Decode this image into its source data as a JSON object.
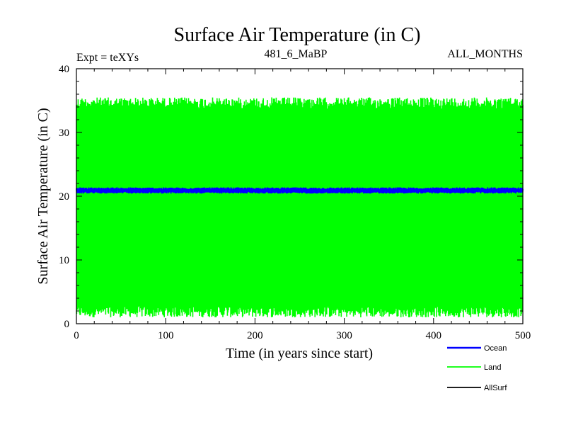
{
  "chart_data": {
    "type": "line",
    "title": "Surface Air Temperature (in C)",
    "subtitle_left": "Expt = teXYs",
    "subtitle_center": "481_6_MaBP",
    "subtitle_right": "ALL_MONTHS",
    "xlabel": "Time (in years since start)",
    "ylabel": "Surface Air Temperature (in C)",
    "xlim": [
      0,
      500
    ],
    "ylim": [
      0,
      40
    ],
    "x_ticks": [
      0,
      100,
      200,
      300,
      400,
      500
    ],
    "y_ticks": [
      0,
      10,
      20,
      30,
      40
    ],
    "grid": false,
    "legend_position": "bottom-right, outside plot",
    "series": [
      {
        "name": "Ocean",
        "color": "#0000ff",
        "x_range": [
          0,
          500
        ],
        "approx_min": 20.3,
        "approx_max": 21.5,
        "approx_mean": 20.9
      },
      {
        "name": "Land",
        "color": "#00ff00",
        "x_range": [
          0,
          500
        ],
        "approx_min": 1.0,
        "approx_max": 35.5,
        "approx_mean": 18.0
      },
      {
        "name": "AllSurf",
        "color": "#000000",
        "x_range": [
          0,
          500
        ]
      }
    ]
  }
}
